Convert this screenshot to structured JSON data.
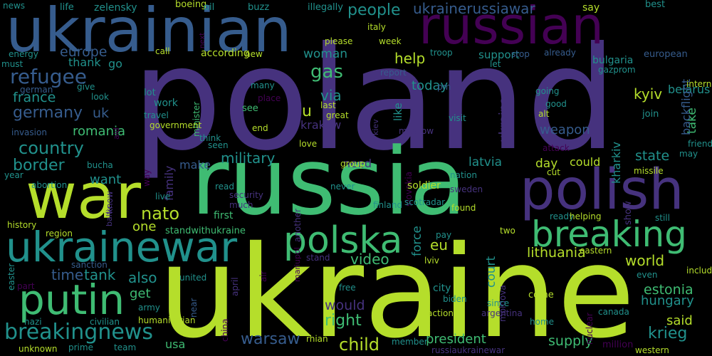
{
  "palette": {
    "background": "#000000",
    "lime": "#b5de2b",
    "green": "#3fbc73",
    "teal": "#21918c",
    "blue": "#365c8d",
    "indigo": "#46327e",
    "purple": "#440154"
  },
  "words": [
    "poland",
    "russia",
    "ukraine",
    "ukrainian",
    "russian",
    "war",
    "polish",
    "breaking",
    "ukrainewar",
    "polska",
    "putin",
    "refugee",
    "breakingnews",
    "country",
    "germany",
    "france",
    "europe",
    "romania",
    "border",
    "nato",
    "people",
    "ukrainerussiawar",
    "kyiv",
    "help",
    "gas",
    "woman",
    "via",
    "today",
    "thank",
    "go",
    "uk",
    "u",
    "want",
    "military",
    "tank",
    "time",
    "also",
    "get",
    "one",
    "standwithukraine",
    "video",
    "child",
    "warsaw",
    "right",
    "would",
    "president",
    "supply",
    "krieg",
    "said",
    "hungary",
    "estonia",
    "world",
    "state",
    "lithuania",
    "latvia",
    "day",
    "could",
    "eu",
    "need",
    "weapon",
    "belarus",
    "bulgaria",
    "support",
    "say",
    "european",
    "usa",
    "first",
    "make",
    "take",
    "backflight",
    "kharkiv",
    "ukraina",
    "court",
    "force",
    "like",
    "family",
    "aid",
    "minister",
    "next",
    "kiev",
    "slovakia",
    "know",
    "way",
    "baltic",
    "another",
    "show",
    "air",
    "mariupol",
    "april",
    "easter",
    "moldova",
    "near",
    "china",
    "nuclear",
    "news",
    "life",
    "zelensky",
    "boeing",
    "oil",
    "buzz",
    "illegally",
    "best",
    "italy",
    "week",
    "please",
    "troop",
    "call",
    "according",
    "new",
    "report",
    "energy",
    "must",
    "german",
    "give",
    "look",
    "lot",
    "work",
    "travel",
    "many",
    "place",
    "see",
    "last",
    "great",
    "pm",
    "going",
    "good",
    "alt",
    "join",
    "let",
    "gazprom",
    "stop",
    "already",
    "international",
    "government",
    "krakow",
    "end",
    "invasion",
    "visit",
    "moscow",
    "attack",
    "friend",
    "may",
    "think",
    "seen",
    "love",
    "group",
    "year",
    "abortion",
    "bucha",
    "live",
    "read",
    "never",
    "security",
    "much",
    "nation",
    "cut",
    "missile",
    "soldier",
    "sweden",
    "found",
    "finland",
    "scotradar",
    "history",
    "ready",
    "helping",
    "still",
    "region",
    "two",
    "pay",
    "eastern",
    "stand",
    "sanction",
    "lviv",
    "including",
    "part",
    "united",
    "even",
    "free",
    "city",
    "come",
    "biden",
    "since",
    "army",
    "argentina",
    "action",
    "canada",
    "nazi",
    "civilian",
    "humanitarian",
    "home",
    "unknown",
    "prime",
    "team",
    "rhian",
    "member",
    "russiaukrainewar",
    "million",
    "western"
  ]
}
